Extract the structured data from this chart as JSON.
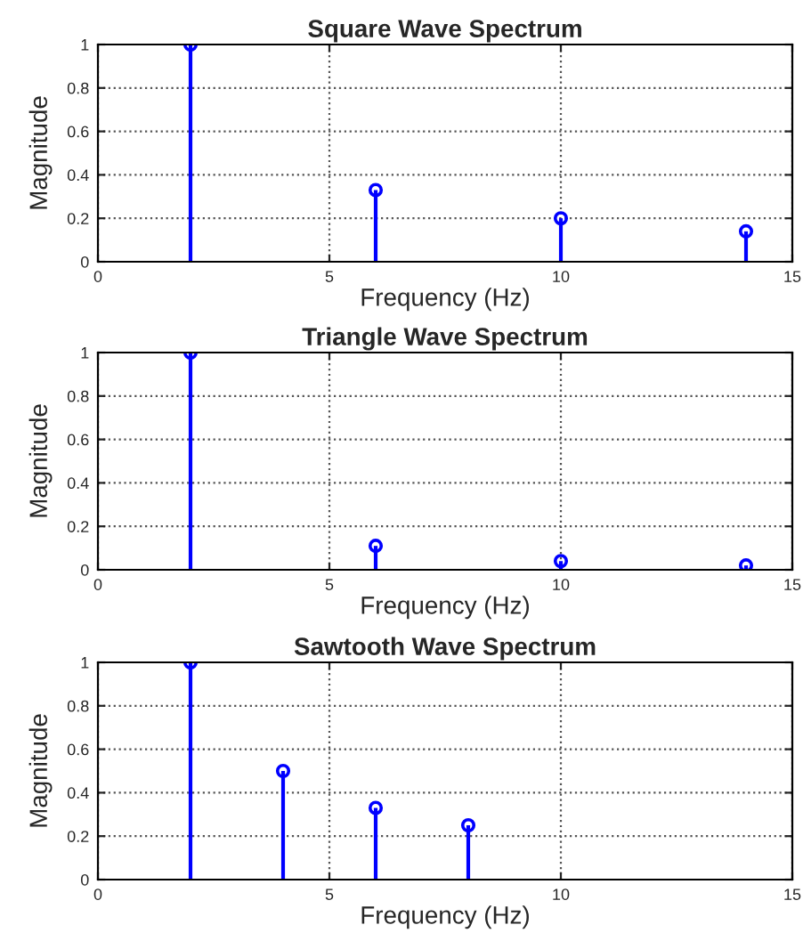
{
  "chart_data": [
    {
      "type": "lollipop",
      "title": "Square Wave Spectrum",
      "xlabel": "Frequency (Hz)",
      "ylabel": "Magnitude",
      "x": [
        2,
        6,
        10,
        14
      ],
      "series": [
        {
          "color": "#0000ff",
          "values": [
            1,
            0.33,
            0.2,
            0.14
          ]
        }
      ],
      "marker": "circle",
      "xlim": [
        0,
        15
      ],
      "xticks": [
        0,
        5,
        10,
        15
      ],
      "ylim": [
        0,
        1
      ],
      "yticks": [
        0,
        0.2,
        0.4,
        0.6,
        0.8,
        1
      ],
      "grid": true
    },
    {
      "type": "lollipop",
      "title": "Triangle Wave Spectrum",
      "xlabel": "Frequency (Hz)",
      "ylabel": "Magnitude",
      "x": [
        2,
        6,
        10,
        14
      ],
      "series": [
        {
          "color": "#0000ff",
          "values": [
            1,
            0.11,
            0.04,
            0.02
          ]
        }
      ],
      "marker": "circle",
      "xlim": [
        0,
        15
      ],
      "xticks": [
        0,
        5,
        10,
        15
      ],
      "ylim": [
        0,
        1
      ],
      "yticks": [
        0,
        0.2,
        0.4,
        0.6,
        0.8,
        1
      ],
      "grid": true
    },
    {
      "type": "lollipop",
      "title": "Sawtooth Wave Spectrum",
      "xlabel": "Frequency (Hz)",
      "ylabel": "Magnitude",
      "x": [
        2,
        4,
        6,
        8
      ],
      "series": [
        {
          "color": "#0000ff",
          "values": [
            1,
            0.5,
            0.33,
            0.25
          ]
        }
      ],
      "marker": "circle",
      "xlim": [
        0,
        15
      ],
      "xticks": [
        0,
        5,
        10,
        15
      ],
      "ylim": [
        0,
        1
      ],
      "yticks": [
        0,
        0.2,
        0.4,
        0.6,
        0.8,
        1
      ],
      "grid": true
    }
  ]
}
